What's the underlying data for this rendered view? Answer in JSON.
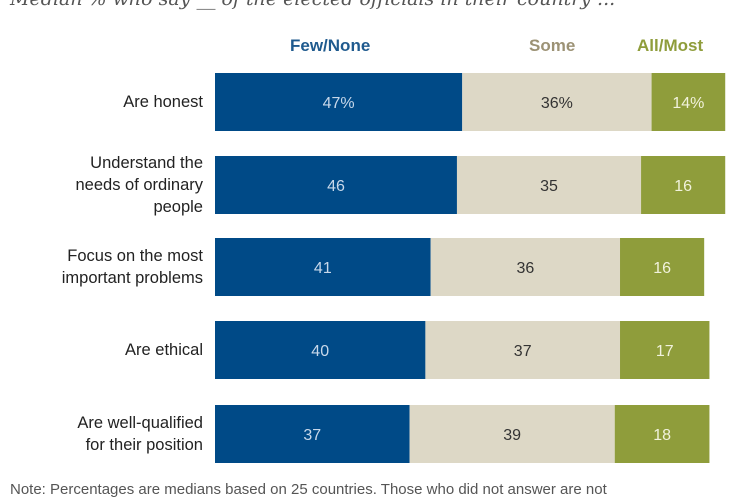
{
  "chart_data": {
    "type": "bar",
    "orientation": "horizontal",
    "stacked": true,
    "subtitle": "Median % who say __ of the elected officials in their country ...",
    "categories": [
      "Are honest",
      "Understand the needs of ordinary people",
      "Focus on the most important problems",
      "Are ethical",
      "Are well-qualified for their position"
    ],
    "category_lines": [
      [
        "Are honest"
      ],
      [
        "Understand the",
        "needs of ordinary",
        "people"
      ],
      [
        "Focus on the most",
        "important problems"
      ],
      [
        "Are ethical"
      ],
      [
        "Are well-qualified",
        "for their position"
      ]
    ],
    "series": [
      {
        "name": "Few/None",
        "color": "#004a87",
        "label_color": "#c8d8ea",
        "values": [
          47,
          46,
          41,
          40,
          37
        ]
      },
      {
        "name": "Some",
        "color": "#ddd8c6",
        "label_color": "#333333",
        "values": [
          36,
          35,
          36,
          37,
          39
        ]
      },
      {
        "name": "All/Most",
        "color": "#8f9d3b",
        "label_color": "#f1f2dc",
        "values": [
          14,
          16,
          16,
          17,
          18
        ]
      }
    ],
    "data_labels": [
      [
        "47%",
        "36%",
        "14%"
      ],
      [
        "46",
        "35",
        "16"
      ],
      [
        "41",
        "36",
        "16"
      ],
      [
        "40",
        "37",
        "17"
      ],
      [
        "37",
        "39",
        "18"
      ]
    ],
    "legend_placement": "top",
    "legend_colors": [
      "#1f5a8e",
      "#9c9275",
      "#8f9d3b"
    ],
    "xlabel": "",
    "ylabel": "",
    "grid": false
  },
  "note": "Note: Percentages are medians based on 25 countries. Those who did not answer are not"
}
